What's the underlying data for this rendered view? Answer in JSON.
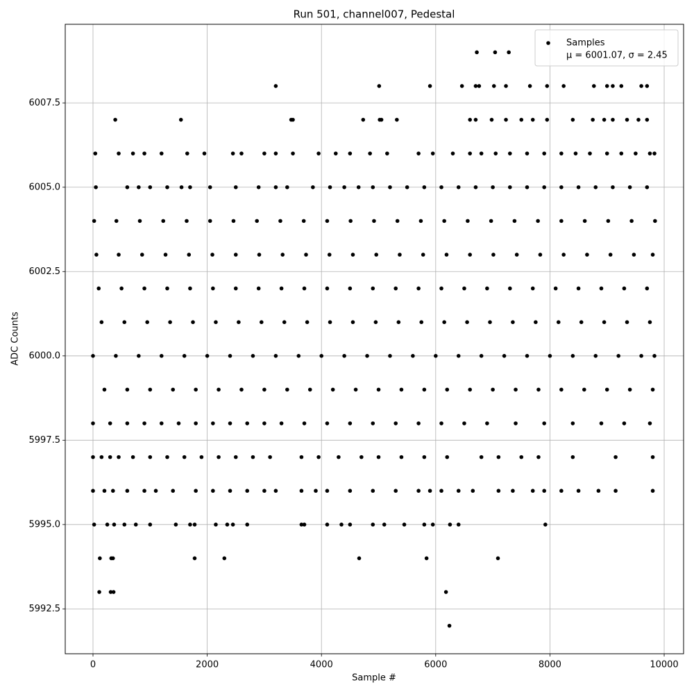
{
  "chart_data": {
    "type": "scatter",
    "title": "Run 501, channel007, Pedestal",
    "xlabel": "Sample #",
    "ylabel": "ADC Counts",
    "xlim": [
      -486,
      10340
    ],
    "ylim": [
      5991.17,
      6009.83
    ],
    "xticks": [
      0,
      2000,
      4000,
      6000,
      8000,
      10000
    ],
    "yticks": [
      5992.5,
      {
        "value": 5995,
        "label": "5995.0"
      },
      5997.5,
      {
        "value": 6000,
        "label": "6000.0"
      },
      6002.5,
      {
        "value": 6005,
        "label": "6005.0"
      },
      6007.5
    ],
    "grid": true,
    "legend": "upper right",
    "legend_note": "μ = 6001.07, σ = 2.45",
    "series": [
      {
        "name": "Samples",
        "color": "#000000",
        "x": [
          20,
          410,
          820,
          1230,
          1640,
          2050,
          2460,
          2870,
          3280,
          3690,
          4100,
          4510,
          4920,
          5330,
          5740,
          6150,
          6560,
          6970,
          7380,
          7790,
          8200,
          8610,
          9020,
          9430,
          9840,
          60,
          450,
          860,
          1270,
          1680,
          2090,
          2500,
          2910,
          3320,
          3730,
          4140,
          4550,
          4960,
          5370,
          5780,
          6190,
          6600,
          7010,
          7420,
          7830,
          8240,
          8650,
          9060,
          9470,
          9800,
          100,
          500,
          900,
          1300,
          1700,
          2100,
          2500,
          2900,
          3300,
          3700,
          4100,
          4500,
          4900,
          5300,
          5700,
          6100,
          6500,
          6900,
          7300,
          7700,
          8100,
          8500,
          8900,
          9300,
          9700,
          150,
          550,
          950,
          1350,
          1750,
          2150,
          2550,
          2950,
          3350,
          3750,
          4150,
          4550,
          4950,
          5350,
          5750,
          6150,
          6550,
          6950,
          7350,
          7750,
          8150,
          8550,
          8950,
          9350,
          9750,
          0,
          400,
          800,
          1200,
          1600,
          2000,
          2400,
          2800,
          3200,
          3600,
          4000,
          4400,
          4800,
          5200,
          5600,
          6000,
          6400,
          6800,
          7200,
          7600,
          8000,
          8400,
          8800,
          9200,
          9600,
          9830,
          200,
          600,
          1000,
          1400,
          1800,
          2200,
          2600,
          3000,
          3400,
          3800,
          4200,
          4600,
          5000,
          5400,
          5800,
          6200,
          6600,
          7000,
          7400,
          7800,
          8200,
          8600,
          9000,
          9400,
          9800,
          0,
          300,
          600,
          900,
          1200,
          1500,
          1800,
          2100,
          2400,
          2700,
          3000,
          3300,
          3700,
          4100,
          4500,
          4900,
          5300,
          5700,
          6100,
          6500,
          6900,
          7400,
          7900,
          8400,
          8900,
          9300,
          9750,
          0,
          150,
          300,
          450,
          700,
          1000,
          1300,
          1600,
          1900,
          2200,
          2500,
          2800,
          3100,
          3650,
          3950,
          4300,
          4700,
          5000,
          5400,
          5800,
          6200,
          6800,
          7100,
          7500,
          7800,
          8400,
          9150,
          9800,
          0,
          200,
          350,
          600,
          900,
          1100,
          1400,
          1800,
          2100,
          2400,
          2700,
          3000,
          3200,
          3650,
          3900,
          4100,
          4500,
          4900,
          5300,
          5700,
          5900,
          6100,
          6400,
          6650,
          7100,
          7350,
          7700,
          7900,
          8200,
          8500,
          8850,
          9150,
          9800,
          20,
          250,
          370,
          550,
          750,
          1000,
          1450,
          1700,
          1780,
          2150,
          2350,
          2450,
          2700,
          3650,
          3700,
          4100,
          4350,
          4500,
          4900,
          5100,
          5450,
          5800,
          5950,
          6250,
          6400,
          7920,
          120,
          320,
          350,
          1780,
          2300,
          4660,
          5840,
          7090,
          110,
          310,
          360,
          6180,
          6240,
          50,
          600,
          800,
          1000,
          1300,
          1550,
          1700,
          2050,
          2500,
          2900,
          3200,
          3400,
          3850,
          4150,
          4400,
          4650,
          4900,
          5200,
          5500,
          5800,
          6100,
          6400,
          6700,
          7000,
          7300,
          7600,
          7900,
          8200,
          8500,
          8800,
          9100,
          9400,
          9700,
          40,
          450,
          700,
          900,
          1200,
          1650,
          1950,
          2450,
          2600,
          3000,
          3200,
          3500,
          3950,
          4250,
          4500,
          4850,
          5150,
          5700,
          5950,
          6300,
          6600,
          6800,
          7050,
          7300,
          7600,
          7900,
          8200,
          8450,
          8700,
          9000,
          9250,
          9500,
          9750,
          9830,
          390,
          1540,
          3470,
          3500,
          4730,
          5020,
          5050,
          5320,
          6600,
          6700,
          6980,
          7230,
          7500,
          7700,
          7950,
          8400,
          8750,
          8950,
          9100,
          9350,
          9550,
          9700,
          3200,
          5010,
          5900,
          6460,
          6700,
          6760,
          7020,
          7230,
          7650,
          7950,
          8240,
          8770,
          9000,
          9100,
          9250,
          9600,
          9700,
          6720,
          7040,
          7280
        ],
        "y": [
          6004,
          6004,
          6004,
          6004,
          6004,
          6004,
          6004,
          6004,
          6004,
          6004,
          6004,
          6004,
          6004,
          6004,
          6004,
          6004,
          6004,
          6004,
          6004,
          6004,
          6004,
          6004,
          6004,
          6004,
          6004,
          6003,
          6003,
          6003,
          6003,
          6003,
          6003,
          6003,
          6003,
          6003,
          6003,
          6003,
          6003,
          6003,
          6003,
          6003,
          6003,
          6003,
          6003,
          6003,
          6003,
          6003,
          6003,
          6003,
          6003,
          6003,
          6002,
          6002,
          6002,
          6002,
          6002,
          6002,
          6002,
          6002,
          6002,
          6002,
          6002,
          6002,
          6002,
          6002,
          6002,
          6002,
          6002,
          6002,
          6002,
          6002,
          6002,
          6002,
          6002,
          6002,
          6002,
          6001,
          6001,
          6001,
          6001,
          6001,
          6001,
          6001,
          6001,
          6001,
          6001,
          6001,
          6001,
          6001,
          6001,
          6001,
          6001,
          6001,
          6001,
          6001,
          6001,
          6001,
          6001,
          6001,
          6001,
          6001,
          6000,
          6000,
          6000,
          6000,
          6000,
          6000,
          6000,
          6000,
          6000,
          6000,
          6000,
          6000,
          6000,
          6000,
          6000,
          6000,
          6000,
          6000,
          6000,
          6000,
          6000,
          6000,
          6000,
          6000,
          6000,
          6000,
          5999,
          5999,
          5999,
          5999,
          5999,
          5999,
          5999,
          5999,
          5999,
          5999,
          5999,
          5999,
          5999,
          5999,
          5999,
          5999,
          5999,
          5999,
          5999,
          5999,
          5999,
          5999,
          5999,
          5999,
          5999,
          5998,
          5998,
          5998,
          5998,
          5998,
          5998,
          5998,
          5998,
          5998,
          5998,
          5998,
          5998,
          5998,
          5998,
          5998,
          5998,
          5998,
          5998,
          5998,
          5998,
          5998,
          5998,
          5998,
          5998,
          5998,
          5998,
          5998,
          5997,
          5997,
          5997,
          5997,
          5997,
          5997,
          5997,
          5997,
          5997,
          5997,
          5997,
          5997,
          5997,
          5997,
          5997,
          5997,
          5997,
          5997,
          5997,
          5997,
          5997,
          5997,
          5997,
          5997,
          5997,
          5997,
          5997,
          5997,
          5996,
          5996,
          5996,
          5996,
          5996,
          5996,
          5996,
          5996,
          5996,
          5996,
          5996,
          5996,
          5996,
          5996,
          5996,
          5996,
          5996,
          5996,
          5996,
          5996,
          5996,
          5996,
          5996,
          5996,
          5996,
          5996,
          5996,
          5996,
          5996,
          5996,
          5996,
          5996,
          5996,
          5995,
          5995,
          5995,
          5995,
          5995,
          5995,
          5995,
          5995,
          5995,
          5995,
          5995,
          5995,
          5995,
          5995,
          5995,
          5995,
          5995,
          5995,
          5995,
          5995,
          5995,
          5995,
          5995,
          5995,
          5995,
          5995,
          5994,
          5994,
          5994,
          5994,
          5994,
          5994,
          5994,
          5994,
          5993,
          5993,
          5993,
          5993,
          5992,
          6005,
          6005,
          6005,
          6005,
          6005,
          6005,
          6005,
          6005,
          6005,
          6005,
          6005,
          6005,
          6005,
          6005,
          6005,
          6005,
          6005,
          6005,
          6005,
          6005,
          6005,
          6005,
          6005,
          6005,
          6005,
          6005,
          6005,
          6005,
          6005,
          6005,
          6005,
          6005,
          6005,
          6006,
          6006,
          6006,
          6006,
          6006,
          6006,
          6006,
          6006,
          6006,
          6006,
          6006,
          6006,
          6006,
          6006,
          6006,
          6006,
          6006,
          6006,
          6006,
          6006,
          6006,
          6006,
          6006,
          6006,
          6006,
          6006,
          6006,
          6006,
          6006,
          6006,
          6006,
          6006,
          6006,
          6006,
          6007,
          6007,
          6007,
          6007,
          6007,
          6007,
          6007,
          6007,
          6007,
          6007,
          6007,
          6007,
          6007,
          6007,
          6007,
          6007,
          6007,
          6007,
          6007,
          6007,
          6007,
          6007,
          6008,
          6008,
          6008,
          6008,
          6008,
          6008,
          6008,
          6008,
          6008,
          6008,
          6008,
          6008,
          6008,
          6008,
          6008,
          6008,
          6008,
          6009,
          6009,
          6009
        ]
      }
    ]
  }
}
